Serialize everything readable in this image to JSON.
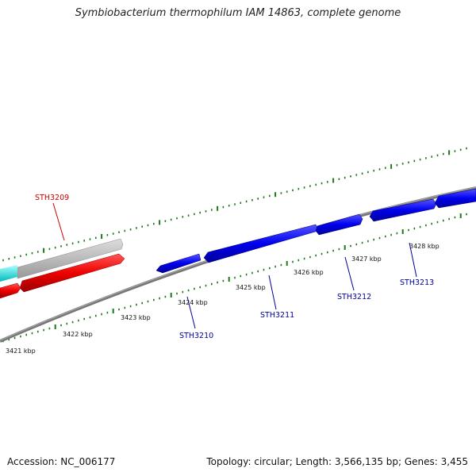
{
  "title": "Symbiobacterium thermophilum IAM 14863, complete genome",
  "footer": {
    "accession": "Accession: NC_006177",
    "summary": "Topology: circular; Length: 3,566,135 bp; Genes: 3,455"
  },
  "scale": {
    "unit": "kbp",
    "ticks": [
      "3421 kbp",
      "3422 kbp",
      "3423 kbp",
      "3424 kbp",
      "3425 kbp",
      "3426 kbp",
      "3427 kbp",
      "3428 kbp"
    ]
  },
  "genes": [
    {
      "name": "STH3209",
      "color": "#cc0000"
    },
    {
      "name": "STH3210",
      "color": "#000099"
    },
    {
      "name": "STH3211",
      "color": "#000099"
    },
    {
      "name": "STH3212",
      "color": "#000099"
    },
    {
      "name": "STH3213",
      "color": "#000099"
    }
  ],
  "colors": {
    "forward_gene": "#0000ee",
    "reverse_gene": "#ee0000",
    "other_track": "#bbbbbb",
    "cyan_track": "#00eeee",
    "backbone": "#808080",
    "tick": "#1a7a1a"
  }
}
